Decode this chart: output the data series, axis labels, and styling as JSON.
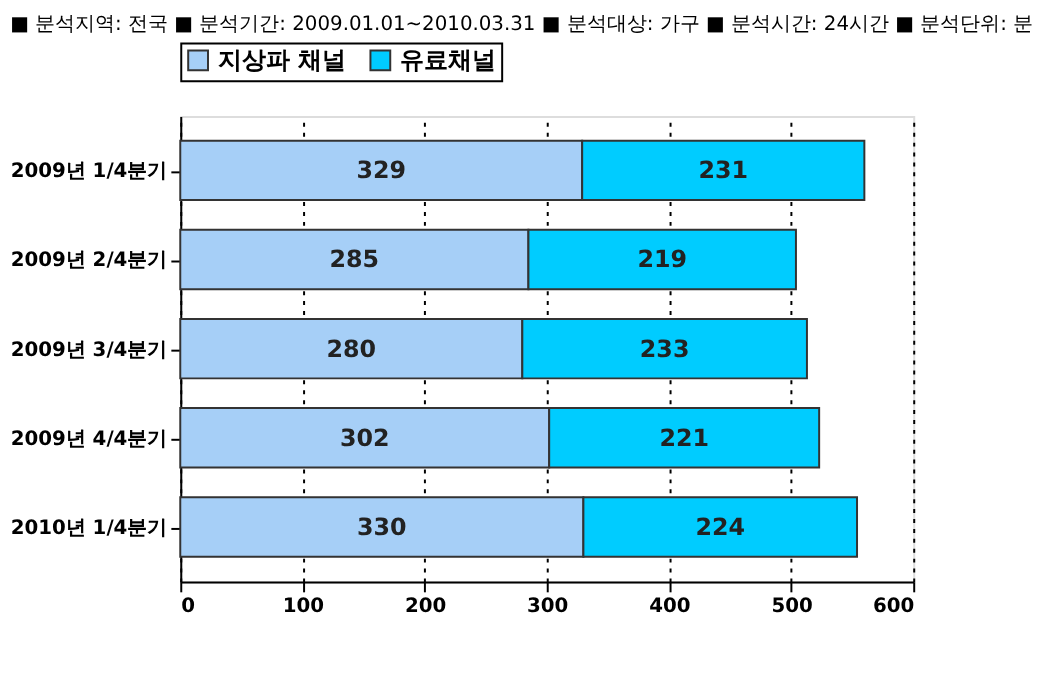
{
  "chart_data": {
    "type": "bar",
    "orientation": "horizontal",
    "stacked": true,
    "title": "■ 분석지역: 전국 ■ 분석기간: 2009.01.01~2010.03.31 ■ 분석대상: 가구 ■ 분석시간: 24시간 ■ 분석단위: 분",
    "categories": [
      "2009년 1/4분기",
      "2009년 2/4분기",
      "2009년 3/4분기",
      "2009년 4/4분기",
      "2010년 1/4분기"
    ],
    "series": [
      {
        "name": "지상파 채널",
        "color": "#a6cff7",
        "values": [
          329,
          285,
          280,
          302,
          330
        ]
      },
      {
        "name": "유료채널",
        "color": "#00ccff",
        "values": [
          231,
          219,
          233,
          221,
          224
        ]
      }
    ],
    "xlim": [
      0,
      600
    ],
    "xticks": [
      0,
      100,
      200,
      300,
      400,
      500,
      600
    ],
    "grid": "x",
    "legend": "top",
    "data_labels": true
  }
}
